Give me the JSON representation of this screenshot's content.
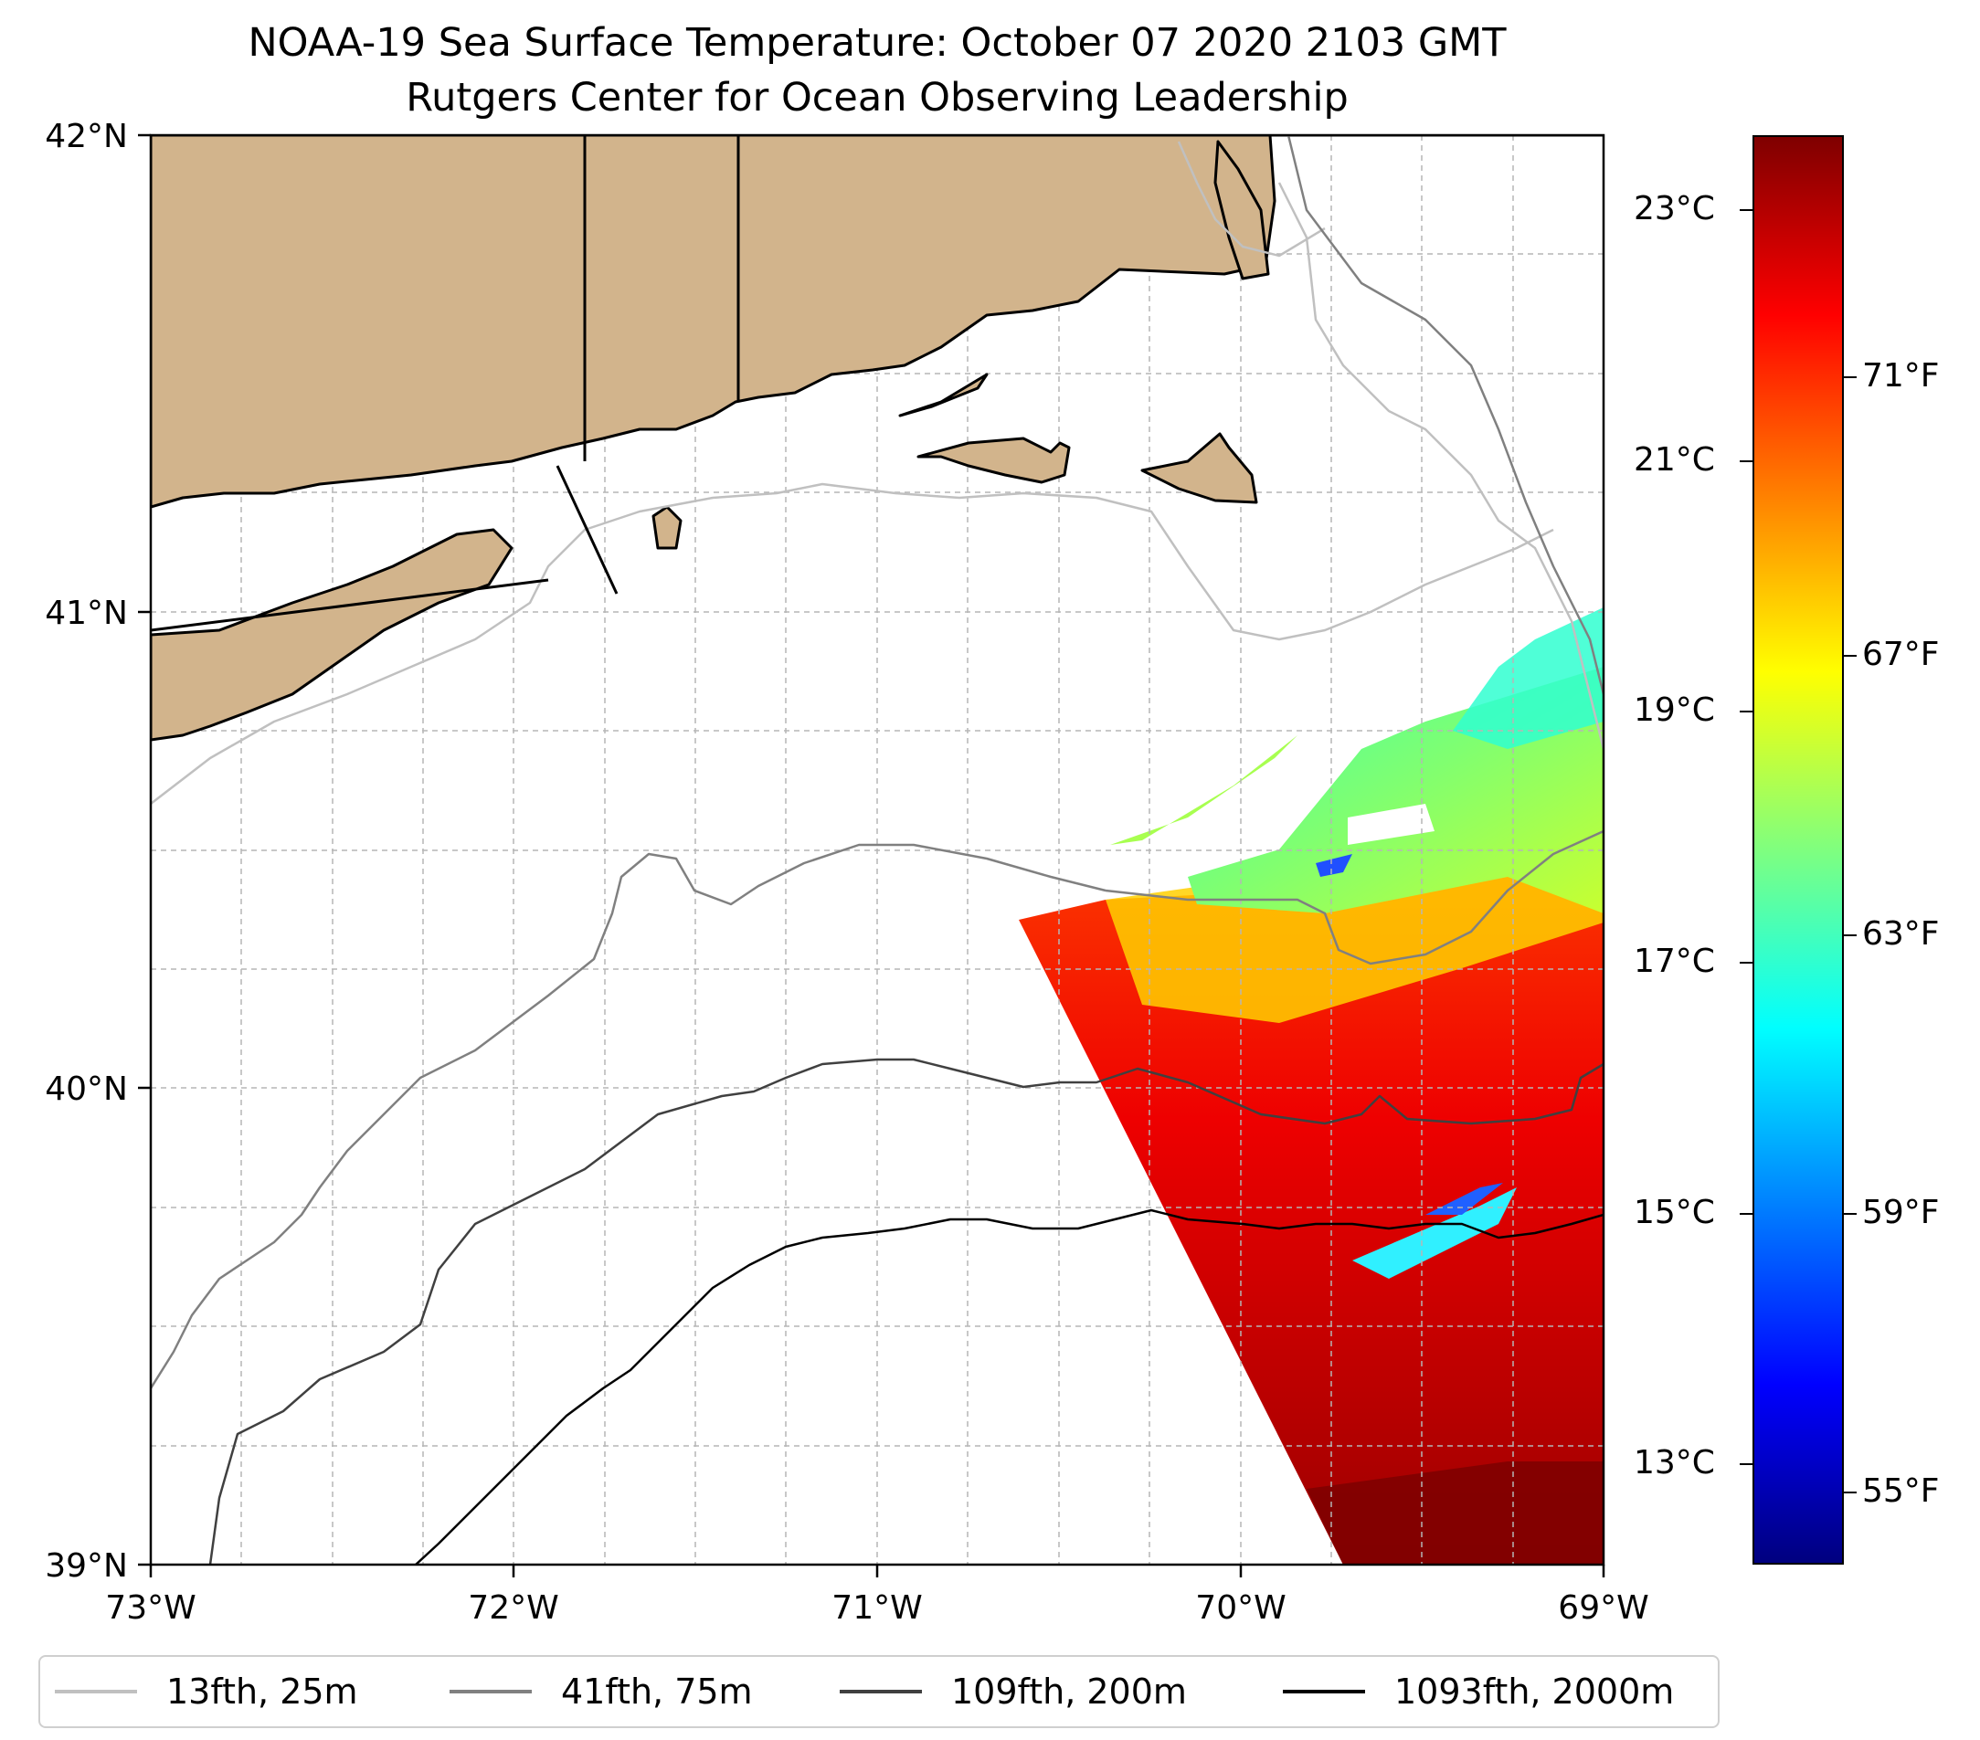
{
  "title": {
    "line1": "NOAA-19 Sea Surface Temperature: October 07 2020 2103 GMT",
    "line2": "Rutgers Center for Ocean Observing Leadership"
  },
  "map": {
    "lon_range": [
      -73,
      -69
    ],
    "lat_range": [
      39,
      42
    ],
    "lon_ticks": [
      "73°W",
      "72°W",
      "71°W",
      "70°W",
      "69°W"
    ],
    "lat_ticks": [
      "42°N",
      "41°N",
      "40°N",
      "39°N"
    ],
    "gridlines": true,
    "land_color": "#d2b48c",
    "coastline_color": "#000000"
  },
  "colorbar": {
    "colormap": "jet",
    "celsius_ticks": [
      "23°C",
      "21°C",
      "19°C",
      "17°C",
      "15°C",
      "13°C"
    ],
    "fahrenheit_ticks": [
      "71°F",
      "67°F",
      "63°F",
      "59°F",
      "55°F"
    ],
    "celsius_values": [
      23,
      21,
      19,
      17,
      15,
      13
    ],
    "fahrenheit_values": [
      71,
      67,
      63,
      59,
      55
    ],
    "range_c": [
      12.2,
      23.6
    ]
  },
  "legend": {
    "items": [
      {
        "label": "13fth, 25m",
        "color": "#c0c0c0"
      },
      {
        "label": "41fth, 75m",
        "color": "#808080"
      },
      {
        "label": "109fth, 200m",
        "color": "#404040"
      },
      {
        "label": "1093fth, 2000m",
        "color": "#000000"
      }
    ]
  }
}
